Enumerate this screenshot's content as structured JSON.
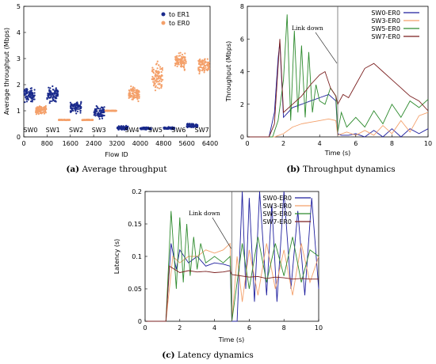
{
  "chart_data": [
    {
      "type": "scatter",
      "caption_tag": "(a)",
      "caption": "Average throughput",
      "xlabel": "Flow ID",
      "ylabel": "Average throughput (Mbps)",
      "xlim": [
        0,
        6400
      ],
      "ylim": [
        0,
        5
      ],
      "xticks": [
        "0",
        "800",
        "1600",
        "2400",
        "3200",
        "4000",
        "4800",
        "5600",
        "6400"
      ],
      "yticks": [
        "0",
        "1",
        "2",
        "3",
        "4",
        "5"
      ],
      "legend_position": "top-right",
      "series": [
        {
          "name": "to ER1",
          "color": "#1a2a8c",
          "clusters": [
            {
              "x": [
                0,
                380
              ],
              "mean": 1.6,
              "spread": 0.18
            },
            {
              "x": [
                800,
                1180
              ],
              "mean": 1.62,
              "spread": 0.2
            },
            {
              "x": [
                1600,
                1980
              ],
              "mean": 1.15,
              "spread": 0.15
            },
            {
              "x": [
                2400,
                2780
              ],
              "mean": 0.95,
              "spread": 0.15
            },
            {
              "x": [
                3200,
                3580
              ],
              "mean": 0.35,
              "spread": 0.05
            },
            {
              "x": [
                4000,
                4380
              ],
              "mean": 0.32,
              "spread": 0.03
            },
            {
              "x": [
                4800,
                5180
              ],
              "mean": 0.33,
              "spread": 0.03
            },
            {
              "x": [
                5600,
                5980
              ],
              "mean": 0.42,
              "spread": 0.06
            }
          ]
        },
        {
          "name": "to ER0",
          "color": "#f4a06a",
          "clusters": [
            {
              "x": [
                400,
                780
              ],
              "mean": 1.02,
              "spread": 0.12
            },
            {
              "x": [
                1200,
                1580
              ],
              "mean": 0.65,
              "spread": 0.01
            },
            {
              "x": [
                2000,
                2380
              ],
              "mean": 0.65,
              "spread": 0.01
            },
            {
              "x": [
                2800,
                3180
              ],
              "mean": 1.0,
              "spread": 0.01
            },
            {
              "x": [
                3600,
                3980
              ],
              "mean": 1.65,
              "spread": 0.2
            },
            {
              "x": [
                4400,
                4780
              ],
              "mean": 2.3,
              "spread": 0.4
            },
            {
              "x": [
                5200,
                5580
              ],
              "mean": 2.9,
              "spread": 0.2
            },
            {
              "x": [
                6000,
                6380
              ],
              "mean": 2.75,
              "spread": 0.22
            }
          ]
        }
      ],
      "group_labels": [
        {
          "text": "SW0",
          "x": 230
        },
        {
          "text": "SW1",
          "x": 1000
        },
        {
          "text": "SW2",
          "x": 1800
        },
        {
          "text": "SW3",
          "x": 2580
        },
        {
          "text": "SW4",
          "x": 3720
        },
        {
          "text": "SW5",
          "x": 4520
        },
        {
          "text": "SW6",
          "x": 5320
        },
        {
          "text": "SW7",
          "x": 6120
        }
      ]
    },
    {
      "type": "line",
      "caption_tag": "(b)",
      "caption": "Throughput dynamics",
      "xlabel": "Time (s)",
      "ylabel": "Throughput (Mbps)",
      "xlim": [
        0,
        10
      ],
      "ylim": [
        0,
        8
      ],
      "xticks": [
        "0",
        "2",
        "4",
        "6",
        "8",
        "10"
      ],
      "yticks": [
        "0",
        "2",
        "4",
        "6",
        "8"
      ],
      "legend_position": "top-right",
      "annotation": {
        "text": "Link down",
        "x": 5.0
      },
      "series": [
        {
          "name": "SW0-ER0",
          "color": "#1f1f9e",
          "x": [
            0,
            1.2,
            1.5,
            1.7,
            1.8,
            2.0,
            2.5,
            3.0,
            3.5,
            4.0,
            4.5,
            4.9,
            5.0,
            5.2,
            5.6,
            6.0,
            6.5,
            7.0,
            7.5,
            8.0,
            8.5,
            9.0,
            9.5,
            10
          ],
          "y": [
            0,
            0,
            1.5,
            4.8,
            5.8,
            1.2,
            1.8,
            2.0,
            2.2,
            2.4,
            2.6,
            2.2,
            0.2,
            0.1,
            0.1,
            0.2,
            0.0,
            0.4,
            0.0,
            0.5,
            0.0,
            0.5,
            0.2,
            0.5
          ]
        },
        {
          "name": "SW3-ER0",
          "color": "#f4a06a",
          "x": [
            0,
            1.5,
            2.0,
            2.5,
            3.0,
            3.5,
            4.0,
            4.5,
            4.9,
            5.0,
            5.5,
            6.0,
            6.5,
            7.0,
            7.5,
            8.0,
            8.5,
            9.0,
            9.5,
            10
          ],
          "y": [
            0,
            0,
            0.2,
            0.6,
            0.8,
            0.9,
            1.0,
            1.1,
            1.0,
            0.1,
            0.3,
            0.1,
            0.4,
            0.1,
            0.7,
            0.2,
            1.0,
            0.3,
            1.3,
            1.5
          ]
        },
        {
          "name": "SW5-ER0",
          "color": "#2e8b2e",
          "x": [
            0,
            1.4,
            1.7,
            2.0,
            2.2,
            2.4,
            2.6,
            2.8,
            3.0,
            3.2,
            3.4,
            3.6,
            3.8,
            4.0,
            4.3,
            4.6,
            4.9,
            5.0,
            5.2,
            5.5,
            6.0,
            6.5,
            7.0,
            7.5,
            8.0,
            8.5,
            9.0,
            9.5,
            10
          ],
          "y": [
            0,
            0,
            1.0,
            3.5,
            7.5,
            1.0,
            6.5,
            1.5,
            5.6,
            1.2,
            5.2,
            1.5,
            3.2,
            2.2,
            2.0,
            3.0,
            2.5,
            0.3,
            1.5,
            0.6,
            1.2,
            0.6,
            1.6,
            0.8,
            2.0,
            1.2,
            2.2,
            1.8,
            2.3
          ]
        },
        {
          "name": "SW7-ER0",
          "color": "#7a1f1f",
          "x": [
            0,
            1.2,
            1.5,
            1.8,
            2.0,
            2.5,
            3.0,
            3.5,
            4.0,
            4.3,
            4.6,
            4.9,
            5.0,
            5.3,
            5.6,
            6.0,
            6.5,
            7.0,
            7.5,
            8.0,
            8.5,
            9.0,
            9.5,
            10
          ],
          "y": [
            0,
            0,
            0.8,
            6.0,
            1.5,
            2.0,
            2.5,
            3.2,
            3.8,
            4.0,
            3.0,
            2.5,
            2.0,
            2.6,
            2.4,
            3.2,
            4.2,
            4.5,
            4.0,
            3.5,
            3.0,
            2.5,
            2.2,
            1.6
          ]
        }
      ]
    },
    {
      "type": "line",
      "caption_tag": "(c)",
      "caption": "Latency dynamics",
      "xlabel": "Time (s)",
      "ylabel": "Latency (s)",
      "xlim": [
        0,
        10
      ],
      "ylim": [
        0,
        0.2
      ],
      "xticks": [
        "0",
        "2",
        "4",
        "6",
        "8",
        "10"
      ],
      "yticks": [
        "0",
        "0.05",
        "0.1",
        "0.15",
        "0.2"
      ],
      "legend_position": "top-right",
      "annotation": {
        "text": "Link down",
        "x": 5.0
      },
      "series": [
        {
          "name": "SW0-ER0",
          "color": "#1f1f9e",
          "x": [
            0,
            1.2,
            1.5,
            1.8,
            2.0,
            2.5,
            3.0,
            3.5,
            4.0,
            4.5,
            4.9,
            5.0,
            5.3,
            5.6,
            5.8,
            6.0,
            6.3,
            6.6,
            7.0,
            7.3,
            7.6,
            8.0,
            8.4,
            8.8,
            9.2,
            9.6,
            10
          ],
          "y": [
            0,
            0,
            0.12,
            0.08,
            0.11,
            0.09,
            0.1,
            0.085,
            0.09,
            0.088,
            0.085,
            0.0,
            0.0,
            0.2,
            0.05,
            0.19,
            0.03,
            0.2,
            0.04,
            0.18,
            0.03,
            0.2,
            0.05,
            0.17,
            0.04,
            0.19,
            0.05
          ]
        },
        {
          "name": "SW3-ER0",
          "color": "#f4a06a",
          "x": [
            0,
            1.2,
            1.6,
            2.0,
            2.5,
            3.0,
            3.5,
            4.0,
            4.5,
            4.9,
            5.0,
            5.3,
            5.6,
            6.0,
            6.5,
            7.0,
            7.5,
            8.0,
            8.5,
            9.0,
            9.5,
            10
          ],
          "y": [
            0,
            0,
            0.1,
            0.09,
            0.1,
            0.1,
            0.11,
            0.105,
            0.11,
            0.12,
            0.0,
            0.1,
            0.03,
            0.11,
            0.04,
            0.12,
            0.05,
            0.11,
            0.04,
            0.12,
            0.06,
            0.1
          ]
        },
        {
          "name": "SW5-ER0",
          "color": "#2e8b2e",
          "x": [
            0,
            1.2,
            1.5,
            1.8,
            2.0,
            2.2,
            2.4,
            2.6,
            2.8,
            3.0,
            3.2,
            3.5,
            4.0,
            4.5,
            4.9,
            5.0,
            5.3,
            5.6,
            6.0,
            6.5,
            7.0,
            7.5,
            8.0,
            8.5,
            9.0,
            9.5,
            10
          ],
          "y": [
            0,
            0,
            0.17,
            0.05,
            0.16,
            0.06,
            0.15,
            0.07,
            0.13,
            0.08,
            0.12,
            0.09,
            0.1,
            0.09,
            0.1,
            0.0,
            0.06,
            0.12,
            0.05,
            0.13,
            0.06,
            0.12,
            0.07,
            0.13,
            0.06,
            0.11,
            0.1
          ]
        },
        {
          "name": "SW7-ER0",
          "color": "#7a1f1f",
          "x": [
            0,
            1.2,
            1.4,
            2.0,
            2.5,
            3.0,
            3.5,
            4.0,
            4.5,
            4.9,
            5.0,
            5.5,
            6.0,
            6.5,
            7.0,
            7.5,
            8.0,
            8.5,
            9.0,
            9.5,
            10
          ],
          "y": [
            0,
            0,
            0.085,
            0.075,
            0.078,
            0.076,
            0.077,
            0.075,
            0.076,
            0.078,
            0.072,
            0.07,
            0.068,
            0.069,
            0.066,
            0.068,
            0.067,
            0.065,
            0.066,
            0.065,
            0.065
          ]
        }
      ]
    }
  ]
}
